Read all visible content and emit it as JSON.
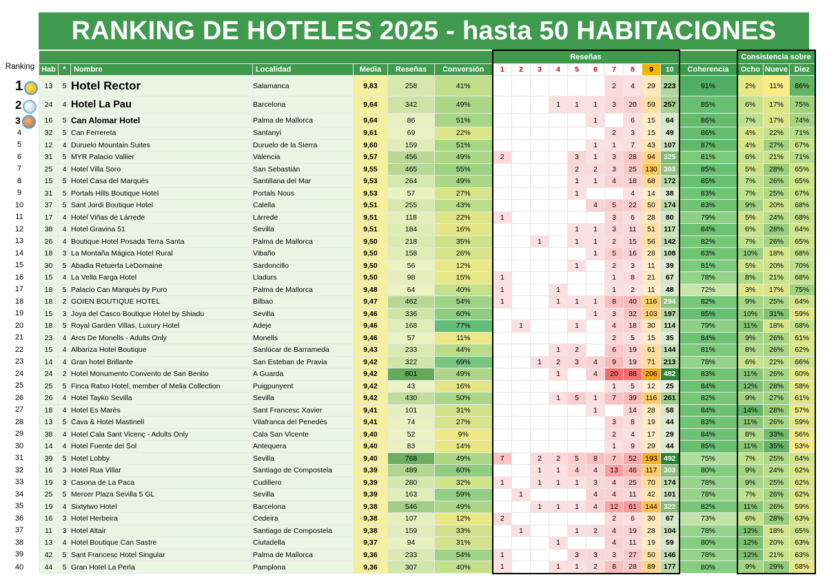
{
  "title": "RANKING DE HOTELES 2025 - hasta 50 HABITACIONES",
  "headers": {
    "ranking": "Ranking",
    "hab": "Hab",
    "star": "*",
    "nombre": "Nombre",
    "localidad": "Localidad",
    "media": "Media",
    "resenas": "Reseñas",
    "conversion": "Conversión",
    "resenas_group": "Reseñas",
    "scores": [
      "1",
      "2",
      "3",
      "4",
      "5",
      "6",
      "7",
      "8",
      "9",
      "10"
    ],
    "coherencia": "Coherencia",
    "consistencia_group": "Consistencia sobre",
    "ocho": "Ocho",
    "nueve": "Nueve",
    "diez": "Diez"
  },
  "medals": [
    "gold-medal-icon",
    "silver-medal-icon",
    "bronze-medal-icon"
  ],
  "rows": [
    {
      "rank": "1",
      "hab": "13",
      "star": "5",
      "name": "Hotel Rector",
      "loc": "Salamanca",
      "media": "9,83",
      "res": "258",
      "conv": "41%",
      "d": [
        "",
        "",
        "",
        "",
        "",
        "",
        "2",
        "4",
        "29",
        "223"
      ],
      "coh": "91%",
      "c8": "2%",
      "c9": "11%",
      "c10": "86%"
    },
    {
      "rank": "2",
      "hab": "24",
      "star": "4",
      "name": "Hotel La Pau",
      "loc": "Barcelona",
      "media": "9,64",
      "res": "342",
      "conv": "49%",
      "d": [
        "",
        "",
        "",
        "1",
        "1",
        "1",
        "3",
        "20",
        "59",
        "257"
      ],
      "coh": "85%",
      "c8": "6%",
      "c9": "17%",
      "c10": "75%"
    },
    {
      "rank": "3",
      "hab": "16",
      "star": "5",
      "name": "Can Alomar Hotel",
      "loc": "Palma de Mallorca",
      "media": "9,64",
      "res": "86",
      "conv": "51%",
      "d": [
        "",
        "",
        "",
        "",
        "",
        "1",
        "",
        "6",
        "15",
        "64"
      ],
      "coh": "86%",
      "c8": "7%",
      "c9": "17%",
      "c10": "74%"
    },
    {
      "rank": "4",
      "hab": "32",
      "star": "5",
      "name": "Can Ferrereta",
      "loc": "Santanyí",
      "media": "9,61",
      "res": "69",
      "conv": "22%",
      "d": [
        "",
        "",
        "",
        "",
        "",
        "",
        "2",
        "3",
        "15",
        "49"
      ],
      "coh": "86%",
      "c8": "4%",
      "c9": "22%",
      "c10": "71%"
    },
    {
      "rank": "5",
      "hab": "12",
      "star": "4",
      "name": "Duruelo Mountain Suites",
      "loc": "Duruelo de la Sierra",
      "media": "9,60",
      "res": "159",
      "conv": "51%",
      "d": [
        "",
        "",
        "",
        "",
        "",
        "1",
        "1",
        "7",
        "43",
        "107"
      ],
      "coh": "87%",
      "c8": "4%",
      "c9": "27%",
      "c10": "67%"
    },
    {
      "rank": "6",
      "hab": "31",
      "star": "5",
      "name": "MYR Palacio Vallier",
      "loc": "Valencia",
      "media": "9,57",
      "res": "456",
      "conv": "49%",
      "d": [
        "2",
        "",
        "",
        "",
        "3",
        "1",
        "3",
        "28",
        "94",
        "325"
      ],
      "coh": "81%",
      "c8": "6%",
      "c9": "21%",
      "c10": "71%"
    },
    {
      "rank": "7",
      "hab": "25",
      "star": "4",
      "name": "Hotel Villa Soro",
      "loc": "San Sebastián",
      "media": "9,55",
      "res": "465",
      "conv": "55%",
      "d": [
        "",
        "",
        "",
        "",
        "2",
        "2",
        "3",
        "25",
        "130",
        "303"
      ],
      "coh": "85%",
      "c8": "5%",
      "c9": "28%",
      "c10": "65%"
    },
    {
      "rank": "8",
      "hab": "15",
      "star": "5",
      "name": "Hotel Casa del Marqués",
      "loc": "Santillana del Mar",
      "media": "9,53",
      "res": "264",
      "conv": "49%",
      "d": [
        "",
        "",
        "",
        "",
        "1",
        "1",
        "4",
        "18",
        "68",
        "172"
      ],
      "coh": "85%",
      "c8": "7%",
      "c9": "26%",
      "c10": "65%"
    },
    {
      "rank": "9",
      "hab": "31",
      "star": "5",
      "name": "Portals Hills Boutique Hotel",
      "loc": "Portals Nous",
      "media": "9,53",
      "res": "57",
      "conv": "27%",
      "d": [
        "",
        "",
        "",
        "",
        "1",
        "",
        "",
        "4",
        "14",
        "38"
      ],
      "coh": "83%",
      "c8": "7%",
      "c9": "25%",
      "c10": "67%"
    },
    {
      "rank": "10",
      "hab": "37",
      "star": "5",
      "name": "Sant Jordi Boutique Hotel",
      "loc": "Calella",
      "media": "9,51",
      "res": "255",
      "conv": "43%",
      "d": [
        "",
        "",
        "",
        "",
        "",
        "4",
        "5",
        "22",
        "50",
        "174"
      ],
      "coh": "83%",
      "c8": "9%",
      "c9": "20%",
      "c10": "68%"
    },
    {
      "rank": "11",
      "hab": "17",
      "star": "4",
      "name": "Hotel Viñas de Lárrede",
      "loc": "Lárrede",
      "media": "9,51",
      "res": "118",
      "conv": "22%",
      "d": [
        "1",
        "",
        "",
        "",
        "",
        "",
        "3",
        "6",
        "28",
        "80"
      ],
      "coh": "79%",
      "c8": "5%",
      "c9": "24%",
      "c10": "68%"
    },
    {
      "rank": "12",
      "hab": "38",
      "star": "4",
      "name": "Hotel Gravina 51",
      "loc": "Sevilla",
      "media": "9,51",
      "res": "184",
      "conv": "16%",
      "d": [
        "",
        "",
        "",
        "",
        "1",
        "1",
        "3",
        "11",
        "51",
        "117"
      ],
      "coh": "84%",
      "c8": "6%",
      "c9": "28%",
      "c10": "64%"
    },
    {
      "rank": "13",
      "hab": "26",
      "star": "4",
      "name": "Boutique Hotel Posada Terra Santa",
      "loc": "Palma de Mallorca",
      "media": "9,50",
      "res": "218",
      "conv": "35%",
      "d": [
        "",
        "",
        "1",
        "",
        "1",
        "1",
        "2",
        "15",
        "56",
        "142"
      ],
      "coh": "82%",
      "c8": "7%",
      "c9": "26%",
      "c10": "65%"
    },
    {
      "rank": "14",
      "hab": "18",
      "star": "3",
      "name": "La Montaña Mágica Hotel Rural",
      "loc": "Vibaño",
      "media": "9,50",
      "res": "158",
      "conv": "26%",
      "d": [
        "",
        "",
        "",
        "",
        "",
        "1",
        "5",
        "16",
        "28",
        "108"
      ],
      "coh": "83%",
      "c8": "10%",
      "c9": "18%",
      "c10": "68%"
    },
    {
      "rank": "15",
      "hab": "30",
      "star": "5",
      "name": "Abadia Retuerta LeDomaine",
      "loc": "Sardoncillo",
      "media": "9,50",
      "res": "56",
      "conv": "12%",
      "d": [
        "",
        "",
        "",
        "",
        "1",
        "",
        "2",
        "3",
        "11",
        "39"
      ],
      "coh": "81%",
      "c8": "5%",
      "c9": "20%",
      "c10": "70%"
    },
    {
      "rank": "16",
      "hab": "15",
      "star": "4",
      "name": "La Vella Farga Hotel",
      "loc": "Lladurs",
      "media": "9,50",
      "res": "98",
      "conv": "15%",
      "d": [
        "1",
        "",
        "",
        "",
        "",
        "",
        "1",
        "8",
        "21",
        "67"
      ],
      "coh": "78%",
      "c8": "8%",
      "c9": "21%",
      "c10": "68%"
    },
    {
      "rank": "17",
      "hab": "18",
      "star": "5",
      "name": "Palacio Can Marqués by Puro",
      "loc": "Palma de Mallorca",
      "media": "9,48",
      "res": "64",
      "conv": "40%",
      "d": [
        "1",
        "",
        "",
        "1",
        "",
        "",
        "1",
        "2",
        "11",
        "48"
      ],
      "coh": "72%",
      "c8": "3%",
      "c9": "17%",
      "c10": "75%"
    },
    {
      "rank": "18",
      "hab": "18",
      "star": "2",
      "name": "GOIEN BOUTIQUE HOTEL",
      "loc": "Bilbao",
      "media": "9,47",
      "res": "462",
      "conv": "54%",
      "d": [
        "1",
        "",
        "",
        "1",
        "1",
        "1",
        "8",
        "40",
        "116",
        "294"
      ],
      "coh": "82%",
      "c8": "9%",
      "c9": "25%",
      "c10": "64%"
    },
    {
      "rank": "19",
      "hab": "15",
      "star": "3",
      "name": "Joya del Casco Boutique Hotel by Shiadu",
      "loc": "Sevilla",
      "media": "9,46",
      "res": "336",
      "conv": "60%",
      "d": [
        "",
        "",
        "",
        "",
        "",
        "1",
        "3",
        "32",
        "103",
        "197"
      ],
      "coh": "85%",
      "c8": "10%",
      "c9": "31%",
      "c10": "59%"
    },
    {
      "rank": "20",
      "hab": "18",
      "star": "5",
      "name": "Royal Garden Villas, Luxury Hotel",
      "loc": "Adeje",
      "media": "9,46",
      "res": "168",
      "conv": "77%",
      "d": [
        "",
        "1",
        "",
        "",
        "1",
        "",
        "4",
        "18",
        "30",
        "114"
      ],
      "coh": "79%",
      "c8": "11%",
      "c9": "18%",
      "c10": "68%"
    },
    {
      "rank": "21",
      "hab": "23",
      "star": "4",
      "name": "Arcs De Monells - Adults Only",
      "loc": "Monells",
      "media": "9,46",
      "res": "57",
      "conv": "11%",
      "d": [
        "",
        "",
        "",
        "",
        "",
        "",
        "2",
        "5",
        "15",
        "35"
      ],
      "coh": "84%",
      "c8": "9%",
      "c9": "26%",
      "c10": "61%"
    },
    {
      "rank": "22",
      "hab": "15",
      "star": "4",
      "name": "Albariza Hotel Boutique",
      "loc": "Sanlúcar de Barrameda",
      "media": "9,43",
      "res": "233",
      "conv": "44%",
      "d": [
        "",
        "",
        "",
        "1",
        "2",
        "",
        "6",
        "19",
        "61",
        "144"
      ],
      "coh": "81%",
      "c8": "8%",
      "c9": "26%",
      "c10": "62%"
    },
    {
      "rank": "23",
      "hab": "14",
      "star": "4",
      "name": "Gran hotel Brillante",
      "loc": "San Esteban de Pravia",
      "media": "9,42",
      "res": "322",
      "conv": "69%",
      "d": [
        "",
        "",
        "1",
        "2",
        "3",
        "4",
        "9",
        "19",
        "71",
        "213"
      ],
      "coh": "78%",
      "c8": "6%",
      "c9": "22%",
      "c10": "66%"
    },
    {
      "rank": "24",
      "hab": "24",
      "star": "2",
      "name": "Hotel Monumento Convento de San Benito",
      "loc": "A Guarda",
      "media": "9,42",
      "res": "801",
      "conv": "49%",
      "d": [
        "",
        "",
        "",
        "1",
        "",
        "4",
        "20",
        "88",
        "206",
        "482"
      ],
      "coh": "83%",
      "c8": "11%",
      "c9": "26%",
      "c10": "60%"
    },
    {
      "rank": "25",
      "hab": "25",
      "star": "5",
      "name": "Finca Ratxo Hotel, member of Melia Collection",
      "loc": "Puigpunyent",
      "media": "9,42",
      "res": "43",
      "conv": "16%",
      "d": [
        "",
        "",
        "",
        "",
        "",
        "",
        "1",
        "5",
        "12",
        "25"
      ],
      "coh": "84%",
      "c8": "12%",
      "c9": "28%",
      "c10": "58%"
    },
    {
      "rank": "26",
      "hab": "26",
      "star": "4",
      "name": "Hotel Tayko Sevilla",
      "loc": "Sevilla",
      "media": "9,42",
      "res": "430",
      "conv": "50%",
      "d": [
        "",
        "",
        "",
        "1",
        "5",
        "1",
        "7",
        "39",
        "116",
        "261"
      ],
      "coh": "82%",
      "c8": "9%",
      "c9": "27%",
      "c10": "61%"
    },
    {
      "rank": "27",
      "hab": "18",
      "star": "4",
      "name": "Hotel Es Marès",
      "loc": "Sant Francesc Xavier",
      "media": "9,41",
      "res": "101",
      "conv": "31%",
      "d": [
        "",
        "",
        "",
        "",
        "",
        "1",
        "",
        "14",
        "28",
        "58"
      ],
      "coh": "84%",
      "c8": "14%",
      "c9": "28%",
      "c10": "57%"
    },
    {
      "rank": "28",
      "hab": "13",
      "star": "5",
      "name": "Cava & Hotel Mastinell",
      "loc": "Vilafranca del Penedès",
      "media": "9,41",
      "res": "74",
      "conv": "27%",
      "d": [
        "",
        "",
        "",
        "",
        "",
        "",
        "3",
        "8",
        "19",
        "44"
      ],
      "coh": "83%",
      "c8": "11%",
      "c9": "26%",
      "c10": "59%"
    },
    {
      "rank": "29",
      "hab": "38",
      "star": "4",
      "name": "Hotel Cala Sant Vicenç - Adults Only",
      "loc": "Cala San Vicente",
      "media": "9,40",
      "res": "52",
      "conv": "9%",
      "d": [
        "",
        "",
        "",
        "",
        "",
        "",
        "2",
        "4",
        "17",
        "29"
      ],
      "coh": "84%",
      "c8": "8%",
      "c9": "33%",
      "c10": "56%"
    },
    {
      "rank": "30",
      "hab": "14",
      "star": "4",
      "name": "Hotel Fuente del Sol",
      "loc": "Antequera",
      "media": "9,40",
      "res": "83",
      "conv": "14%",
      "d": [
        "",
        "",
        "",
        "",
        "",
        "",
        "1",
        "9",
        "29",
        "44"
      ],
      "coh": "85%",
      "c8": "11%",
      "c9": "35%",
      "c10": "53%"
    },
    {
      "rank": "31",
      "hab": "39",
      "star": "5",
      "name": "Hotel Lobby",
      "loc": "Sevilla",
      "media": "9,40",
      "res": "768",
      "conv": "49%",
      "d": [
        "7",
        "",
        "2",
        "2",
        "5",
        "8",
        "7",
        "52",
        "193",
        "492"
      ],
      "coh": "75%",
      "c8": "7%",
      "c9": "25%",
      "c10": "64%"
    },
    {
      "rank": "32",
      "hab": "16",
      "star": "3",
      "name": "Hotel Rua Villar",
      "loc": "Santiago de Compostela",
      "media": "9,39",
      "res": "489",
      "conv": "60%",
      "d": [
        "",
        "",
        "1",
        "1",
        "4",
        "4",
        "13",
        "46",
        "117",
        "303"
      ],
      "coh": "80%",
      "c8": "9%",
      "c9": "24%",
      "c10": "62%"
    },
    {
      "rank": "33",
      "hab": "19",
      "star": "3",
      "name": "Casona de La Paca",
      "loc": "Cudillero",
      "media": "9,39",
      "res": "280",
      "conv": "32%",
      "d": [
        "1",
        "",
        "1",
        "1",
        "1",
        "3",
        "4",
        "25",
        "70",
        "174"
      ],
      "coh": "78%",
      "c8": "9%",
      "c9": "25%",
      "c10": "62%"
    },
    {
      "rank": "34",
      "hab": "25",
      "star": "5",
      "name": "Mercer Plaza Sevilla 5 GL",
      "loc": "Sevilla",
      "media": "9,39",
      "res": "163",
      "conv": "59%",
      "d": [
        "",
        "1",
        "",
        "",
        "",
        "4",
        "4",
        "11",
        "42",
        "101"
      ],
      "coh": "78%",
      "c8": "7%",
      "c9": "26%",
      "c10": "62%"
    },
    {
      "rank": "35",
      "hab": "19",
      "star": "4",
      "name": "Sixtytwo Hotel",
      "loc": "Barcelona",
      "media": "9,38",
      "res": "546",
      "conv": "49%",
      "d": [
        "",
        "",
        "1",
        "1",
        "1",
        "4",
        "12",
        "61",
        "144",
        "322"
      ],
      "coh": "82%",
      "c8": "11%",
      "c9": "26%",
      "c10": "59%"
    },
    {
      "rank": "36",
      "hab": "16",
      "star": "3",
      "name": "Hotel Herbeira",
      "loc": "Cedeira",
      "media": "9,38",
      "res": "107",
      "conv": "12%",
      "d": [
        "2",
        "",
        "",
        "",
        "",
        "",
        "2",
        "6",
        "30",
        "67"
      ],
      "coh": "73%",
      "c8": "6%",
      "c9": "28%",
      "c10": "63%"
    },
    {
      "rank": "37",
      "hab": "11",
      "star": "3",
      "name": "Hotel Altair",
      "loc": "Santiago de Compostela",
      "media": "9,38",
      "res": "159",
      "conv": "33%",
      "d": [
        "",
        "1",
        "",
        "",
        "1",
        "2",
        "4",
        "19",
        "28",
        "104"
      ],
      "coh": "78%",
      "c8": "12%",
      "c9": "18%",
      "c10": "65%"
    },
    {
      "rank": "38",
      "hab": "13",
      "star": "4",
      "name": "Hotel Boutique Can Sastre",
      "loc": "Ciutadella",
      "media": "9,37",
      "res": "94",
      "conv": "31%",
      "d": [
        "",
        "",
        "",
        "1",
        "",
        "",
        "4",
        "11",
        "19",
        "59"
      ],
      "coh": "80%",
      "c8": "12%",
      "c9": "20%",
      "c10": "63%"
    },
    {
      "rank": "39",
      "hab": "42",
      "star": "5",
      "name": "Sant Francesc Hotel Singular",
      "loc": "Palma de Mallorca",
      "media": "9,36",
      "res": "233",
      "conv": "54%",
      "d": [
        "1",
        "",
        "",
        "",
        "3",
        "3",
        "3",
        "27",
        "50",
        "146"
      ],
      "coh": "78%",
      "c8": "12%",
      "c9": "21%",
      "c10": "63%"
    },
    {
      "rank": "40",
      "hab": "44",
      "star": "5",
      "name": "Gran Hotel La Perla",
      "loc": "Pamplona",
      "media": "9,36",
      "res": "307",
      "conv": "40%",
      "d": [
        "1",
        "",
        "",
        "1",
        "1",
        "2",
        "8",
        "28",
        "89",
        "177"
      ],
      "coh": "80%",
      "c8": "9%",
      "c9": "29%",
      "c10": "58%"
    }
  ]
}
